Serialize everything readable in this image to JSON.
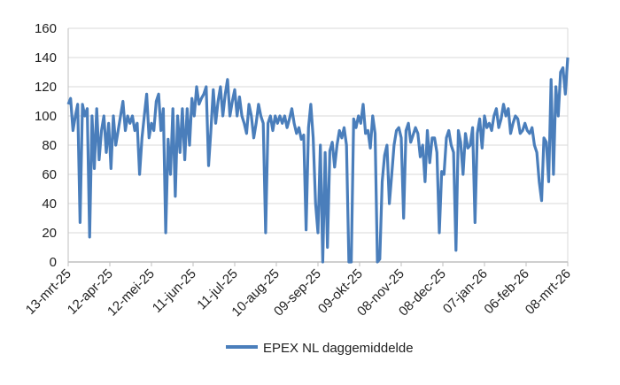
{
  "chart_data": {
    "type": "line",
    "title": "",
    "xlabel": "",
    "ylabel": "",
    "ylim": [
      0,
      160
    ],
    "y_ticks": [
      0,
      20,
      40,
      60,
      80,
      100,
      120,
      140,
      160
    ],
    "x_range": [
      "2025-03-13",
      "2026-03-08"
    ],
    "x_tick_labels": [
      "13-mrt-25",
      "12-apr-25",
      "12-mei-25",
      "11-jun-25",
      "11-jul-25",
      "10-aug-25",
      "09-sep-25",
      "09-okt-25",
      "08-nov-25",
      "08-dec-25",
      "07-jan-26",
      "06-feb-26",
      "08-mrt-26"
    ],
    "grid": "horizontal",
    "legend_position": "bottom",
    "series": [
      {
        "name": "EPEX NL daggemiddelde",
        "color": "#4a7ebb",
        "values": [
          108,
          112,
          90,
          100,
          108,
          27,
          108,
          100,
          105,
          17,
          100,
          64,
          105,
          70,
          90,
          100,
          75,
          95,
          64,
          100,
          80,
          90,
          100,
          110,
          90,
          100,
          95,
          100,
          90,
          95,
          60,
          85,
          100,
          115,
          85,
          95,
          90,
          110,
          115,
          90,
          105,
          20,
          84,
          60,
          105,
          45,
          100,
          75,
          105,
          70,
          105,
          80,
          112,
          100,
          120,
          108,
          112,
          115,
          120,
          66,
          90,
          118,
          95,
          110,
          120,
          100,
          115,
          125,
          100,
          110,
          118,
          100,
          113,
          100,
          95,
          88,
          108,
          100,
          85,
          95,
          108,
          100,
          95,
          20,
          95,
          100,
          90,
          100,
          95,
          100,
          95,
          100,
          92,
          98,
          105,
          95,
          88,
          92,
          84,
          87,
          22,
          92,
          108,
          85,
          40,
          20,
          80,
          0,
          75,
          10,
          76,
          82,
          65,
          80,
          90,
          85,
          92,
          80,
          0,
          0,
          98,
          92,
          100,
          95,
          108,
          88,
          90,
          78,
          100,
          88,
          0,
          2,
          55,
          73,
          80,
          40,
          60,
          80,
          90,
          92,
          85,
          30,
          90,
          95,
          82,
          87,
          92,
          88,
          72,
          80,
          55,
          90,
          68,
          85,
          85,
          75,
          20,
          62,
          60,
          85,
          90,
          80,
          75,
          8,
          90,
          82,
          60,
          88,
          78,
          80,
          92,
          27,
          88,
          98,
          78,
          100,
          92,
          95,
          90,
          100,
          105,
          92,
          98,
          108,
          100,
          105,
          88,
          95,
          100,
          98,
          88,
          90,
          95,
          90,
          88,
          92,
          80,
          75,
          55,
          42,
          85,
          82,
          55,
          125,
          60,
          120,
          100,
          130,
          133,
          115,
          140
        ]
      }
    ]
  }
}
